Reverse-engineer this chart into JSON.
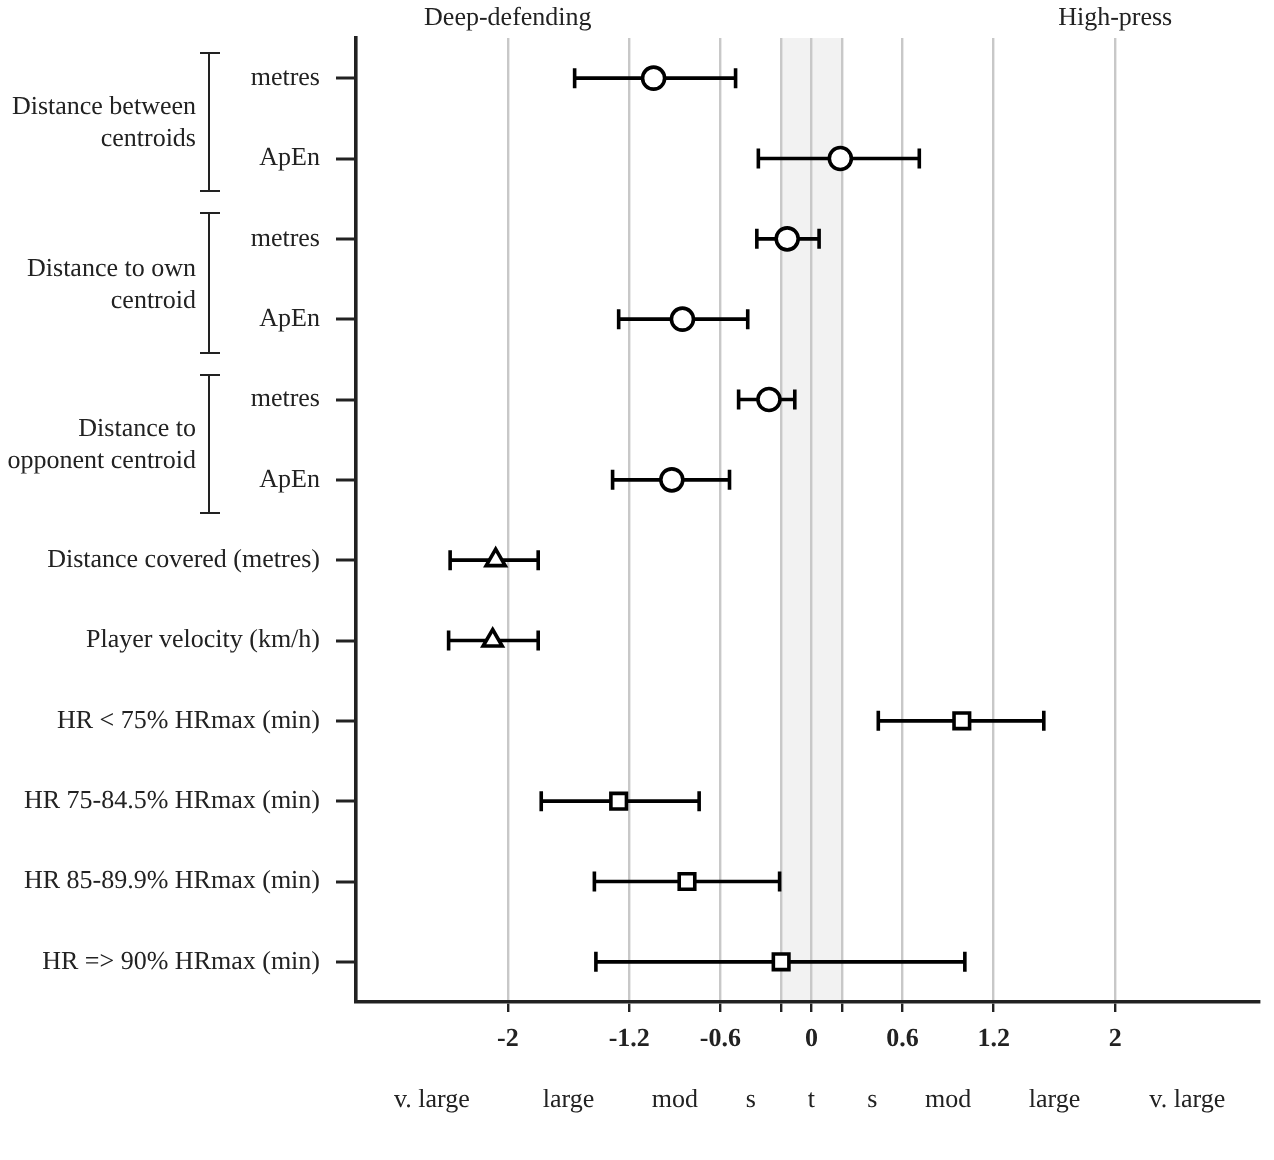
{
  "chart_data": {
    "type": "scatter",
    "orientation": "horizontal",
    "categories": [
      "metres",
      "ApEn",
      "metres",
      "ApEn",
      "metres",
      "ApEn",
      "Distance covered (metres)",
      "Player velocity (km/h)",
      "HR < 75% HRmax (min)",
      "HR 75-84.5% HRmax (min)",
      "HR 85-89.9% HRmax (min)",
      "HR => 90% HRmax (min)"
    ],
    "series": [
      {
        "color": "#000000",
        "marker": "circle",
        "values": [
          -1.04,
          0.19,
          -0.16,
          -0.85,
          -0.28,
          -0.92,
          null,
          null,
          null,
          null,
          null,
          null
        ],
        "errors": [
          [
            -1.56,
            -0.5
          ],
          [
            -0.35,
            0.71
          ],
          [
            -0.36,
            0.05
          ],
          [
            -1.27,
            -0.42
          ],
          [
            -0.48,
            -0.11
          ],
          [
            -1.31,
            -0.54
          ],
          null,
          null,
          null,
          null,
          null,
          null
        ]
      },
      {
        "color": "#000000",
        "marker": "triangle",
        "values": [
          null,
          null,
          null,
          null,
          null,
          null,
          -2.08,
          -2.1,
          null,
          null,
          null,
          null
        ],
        "errors": [
          null,
          null,
          null,
          null,
          null,
          null,
          [
            -2.38,
            -1.8
          ],
          [
            -2.39,
            -1.8
          ],
          null,
          null,
          null,
          null
        ]
      },
      {
        "color": "#000000",
        "marker": "square",
        "values": [
          null,
          null,
          null,
          null,
          null,
          null,
          null,
          null,
          0.99,
          -1.27,
          -0.82,
          -0.2
        ],
        "errors": [
          null,
          null,
          null,
          null,
          null,
          null,
          null,
          null,
          [
            0.44,
            1.53
          ],
          [
            -1.78,
            -0.74
          ],
          [
            -1.43,
            -0.21
          ],
          [
            -1.42,
            1.01
          ]
        ]
      }
    ],
    "xlim": [
      -3,
      2.95
    ],
    "xticks": [
      -2,
      -1.2,
      -0.6,
      {
        "value": -0.2,
        "label": null
      },
      0,
      {
        "value": 0.2,
        "label": null
      },
      0.6,
      1.2,
      2
    ],
    "bands": [
      {
        "axis": "x",
        "from": -0.2,
        "to": 0.2,
        "color": "#f2f2f2"
      }
    ],
    "grid": "x",
    "legend": false,
    "annotations": [
      "Distance between centroids",
      "Distance to own centroid",
      "Distance to opponent centroid",
      "Deep-defending",
      "High-press",
      "v. large",
      "large",
      "mod",
      "s",
      "t",
      "s",
      "mod",
      "large",
      "v. large"
    ]
  }
}
